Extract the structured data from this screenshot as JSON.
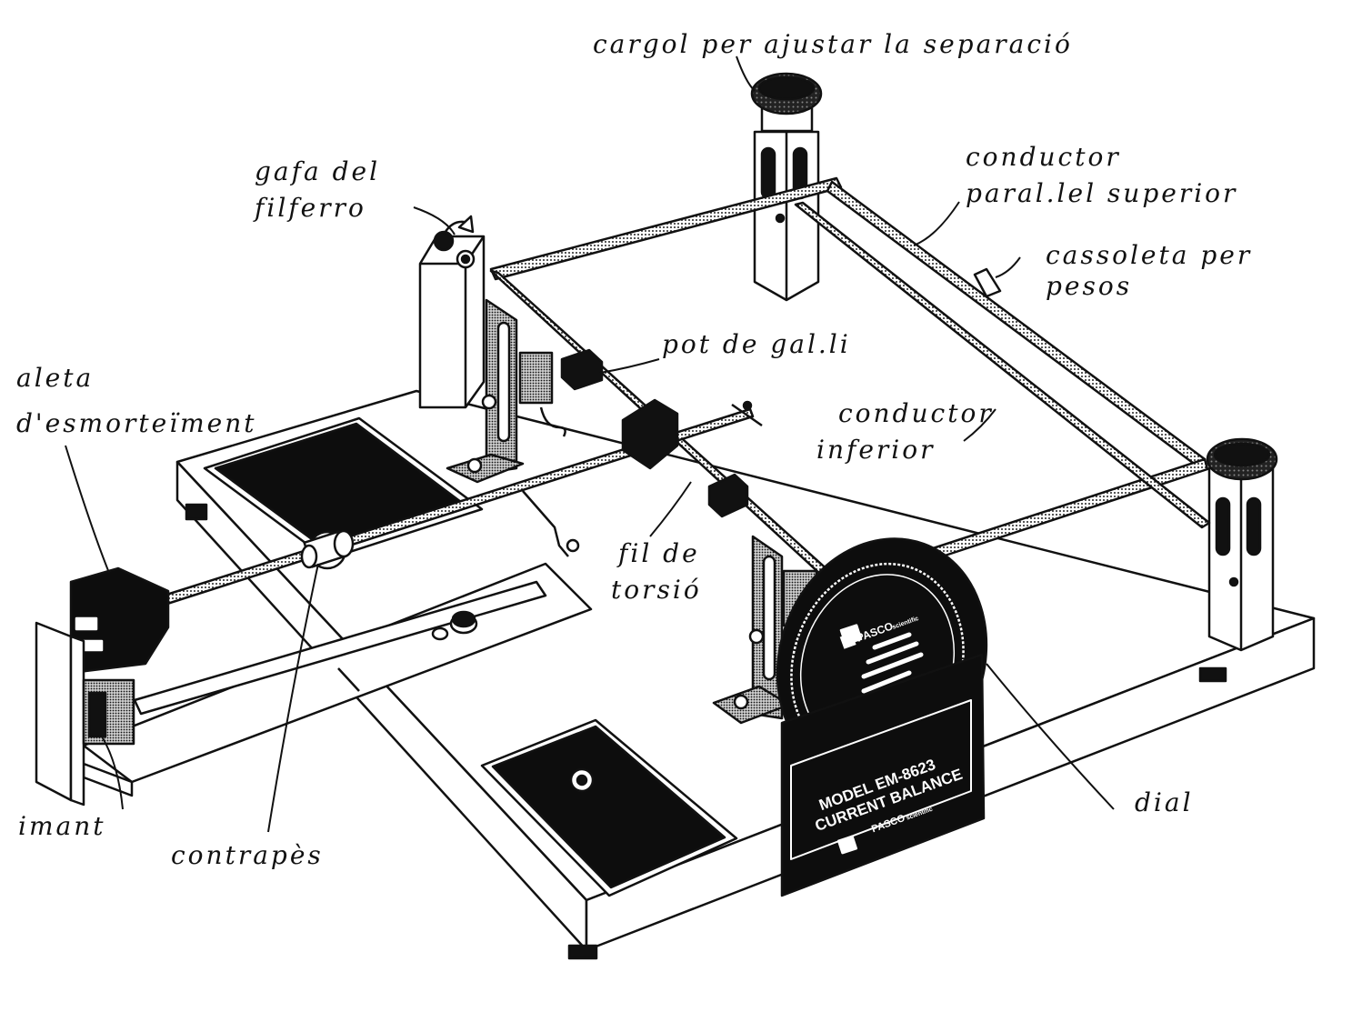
{
  "labels": {
    "cargol": "cargol per ajustar la separació",
    "gafa_line1": "gafa del",
    "gafa_line2": "filferro",
    "conductor_sup_line1": "conductor",
    "conductor_sup_line2": "paral.lel superior",
    "cassoleta_line1": "cassoleta per",
    "cassoleta_line2": "pesos",
    "pot": "pot de gal.li",
    "aleta_line1": "aleta",
    "aleta_line2": "d'esmorteïment",
    "conductor_inf_line1": "conductor",
    "conductor_inf_line2": "inferior",
    "fil_line1": "fil de",
    "fil_line2": "torsió",
    "imant": "imant",
    "contrapes": "contrapès",
    "dial": "dial"
  },
  "plate": {
    "brand": "PASCO",
    "brand_sub": "scientific",
    "model_line1": "MODEL EM-8623",
    "model_line2": "CURRENT BALANCE"
  },
  "colors": {
    "ink": "#111111",
    "paper": "#ffffff",
    "dark": "#0d0d0d"
  }
}
